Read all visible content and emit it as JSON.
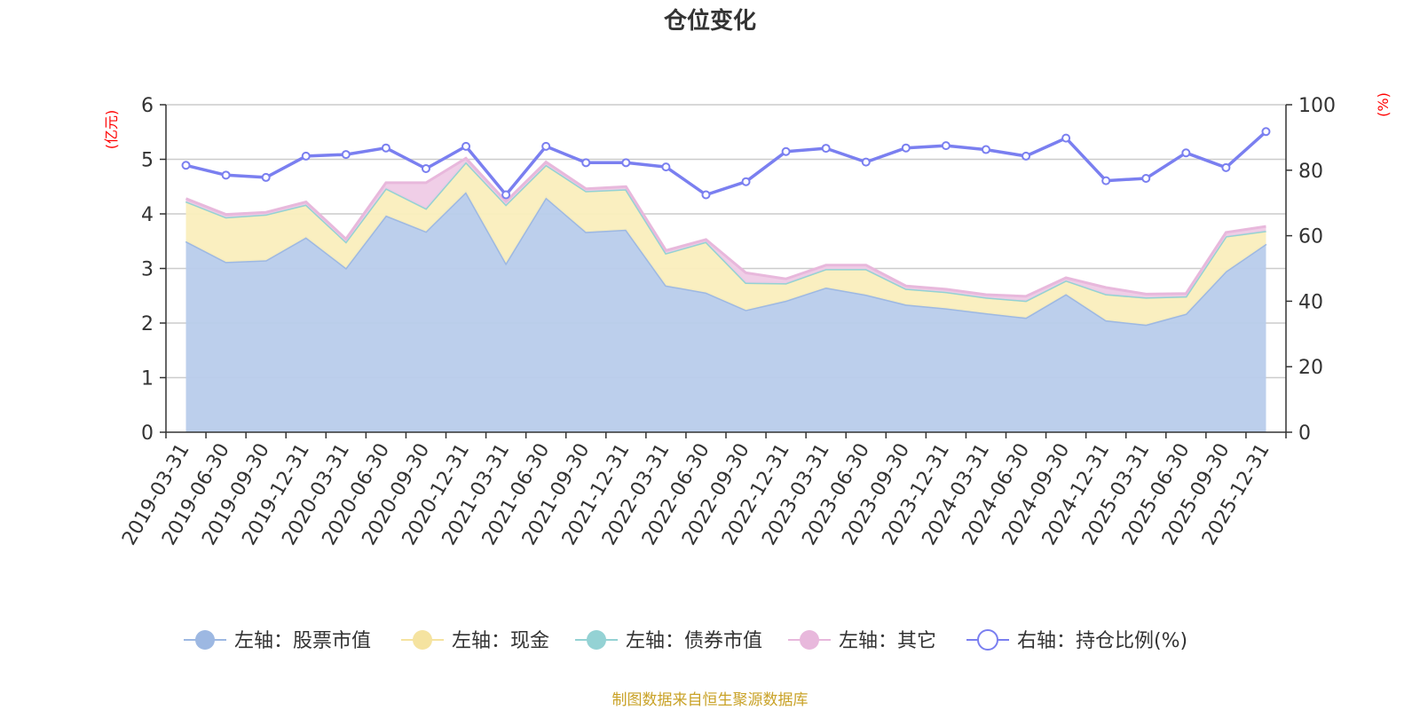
{
  "chart_data": {
    "type": "area",
    "title": "仓位变化",
    "left_axis": {
      "unit_label": "(亿元)",
      "ylim": [
        0,
        6
      ],
      "ticks": [
        "0",
        "1",
        "2",
        "3",
        "4",
        "5",
        "6"
      ]
    },
    "right_axis": {
      "unit_label": "(%)",
      "ylim": [
        0,
        100
      ],
      "ticks": [
        "0",
        "20",
        "40",
        "60",
        "80",
        "100"
      ]
    },
    "categories": [
      "2019-03-31",
      "2019-06-30",
      "2019-09-30",
      "2019-12-31",
      "2020-03-31",
      "2020-06-30",
      "2020-09-30",
      "2020-12-31",
      "2021-03-31",
      "2021-06-30",
      "2021-09-30",
      "2021-12-31",
      "2022-03-31",
      "2022-06-30",
      "2022-09-30",
      "2022-12-31",
      "2023-03-31",
      "2023-06-30",
      "2023-09-30",
      "2023-12-31",
      "2024-03-31",
      "2024-06-30",
      "2024-09-30",
      "2024-12-31",
      "2025-03-31",
      "2025-06-30",
      "2025-09-30",
      "2025-12-31"
    ],
    "series": [
      {
        "name": "左轴：股票市值",
        "axis": "left",
        "kind": "stacked-area",
        "color": "#9db8e2",
        "fill": "#b8cceb",
        "values": [
          3.5,
          3.12,
          3.15,
          3.57,
          3.01,
          3.97,
          3.68,
          4.4,
          3.1,
          4.3,
          3.67,
          3.71,
          2.69,
          2.56,
          2.24,
          2.41,
          2.65,
          2.52,
          2.34,
          2.27,
          2.18,
          2.1,
          2.53,
          2.05,
          1.97,
          2.17,
          2.95,
          3.45
        ]
      },
      {
        "name": "左轴：现金",
        "axis": "left",
        "kind": "stacked-area",
        "color": "#f5e3a0",
        "fill": "#faeebd",
        "values": [
          0.73,
          0.82,
          0.84,
          0.6,
          0.48,
          0.5,
          0.42,
          0.55,
          1.07,
          0.6,
          0.75,
          0.74,
          0.59,
          0.93,
          0.5,
          0.32,
          0.34,
          0.47,
          0.29,
          0.3,
          0.29,
          0.31,
          0.25,
          0.48,
          0.5,
          0.32,
          0.64,
          0.24
        ]
      },
      {
        "name": "左轴：债券市值",
        "axis": "left",
        "kind": "stacked-area",
        "color": "#94d2d4",
        "fill": "#b3dfe0",
        "values": [
          0,
          0,
          0,
          0,
          0,
          0,
          0,
          0,
          0,
          0,
          0,
          0,
          0,
          0,
          0,
          0,
          0,
          0,
          0,
          0,
          0,
          0,
          0,
          0,
          0,
          0,
          0,
          0
        ]
      },
      {
        "name": "左轴：其它",
        "axis": "left",
        "kind": "stacked-area",
        "color": "#e8b8dc",
        "fill": "#efcbe6",
        "values": [
          0.05,
          0.05,
          0.04,
          0.05,
          0.05,
          0.1,
          0.47,
          0.07,
          0.06,
          0.05,
          0.04,
          0.05,
          0.05,
          0.04,
          0.18,
          0.08,
          0.07,
          0.07,
          0.05,
          0.05,
          0.05,
          0.08,
          0.05,
          0.12,
          0.06,
          0.05,
          0.07,
          0.08
        ]
      },
      {
        "name": "右轴：持仓比例(%)",
        "axis": "right",
        "kind": "line",
        "color": "#7a7ff0",
        "values": [
          81.5,
          78.5,
          77.8,
          84.3,
          84.8,
          86.8,
          80.5,
          87.3,
          72.5,
          87.3,
          82.3,
          82.3,
          81,
          72.5,
          76.5,
          85.7,
          86.7,
          82.5,
          86.8,
          87.5,
          86.3,
          84.3,
          89.8,
          76.8,
          77.5,
          85.3,
          80.8,
          91.8
        ]
      }
    ]
  },
  "source_text": "制图数据来自恒生聚源数据库",
  "colors": {
    "left_unit": "#ff0000",
    "right_unit": "#ff0000",
    "source": "#c9a227",
    "grid": "#cccccc",
    "axis": "#333333"
  }
}
